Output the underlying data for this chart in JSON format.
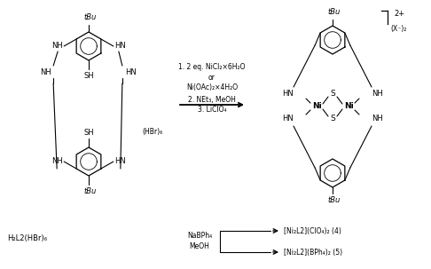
{
  "bg_color": "#ffffff",
  "fig_width": 4.86,
  "fig_height": 3.03,
  "dpi": 100,
  "structures": {
    "reactant_label": "H₂L2(HBr)₆",
    "product_bracket": "2+",
    "product_anion": "(X⁻)₂",
    "hbr_label": "(HBr)₆",
    "reagents_line1": "1. 2 eq. NiCl₂×6H₂O",
    "reagents_line2": "or",
    "reagents_line3": "Ni(OAc)₂×4H₂O",
    "reagents_line4": "2. NEt₃, MeOH",
    "reagents_line5": "3. LiClO₄",
    "bottom_reagent1": "NaBPh₄",
    "bottom_reagent2": "MeOH",
    "product1": "[Ni₂L2](ClO₄)₂ (4)",
    "product2": "[Ni₂L2](BPh₄)₂ (5)"
  }
}
